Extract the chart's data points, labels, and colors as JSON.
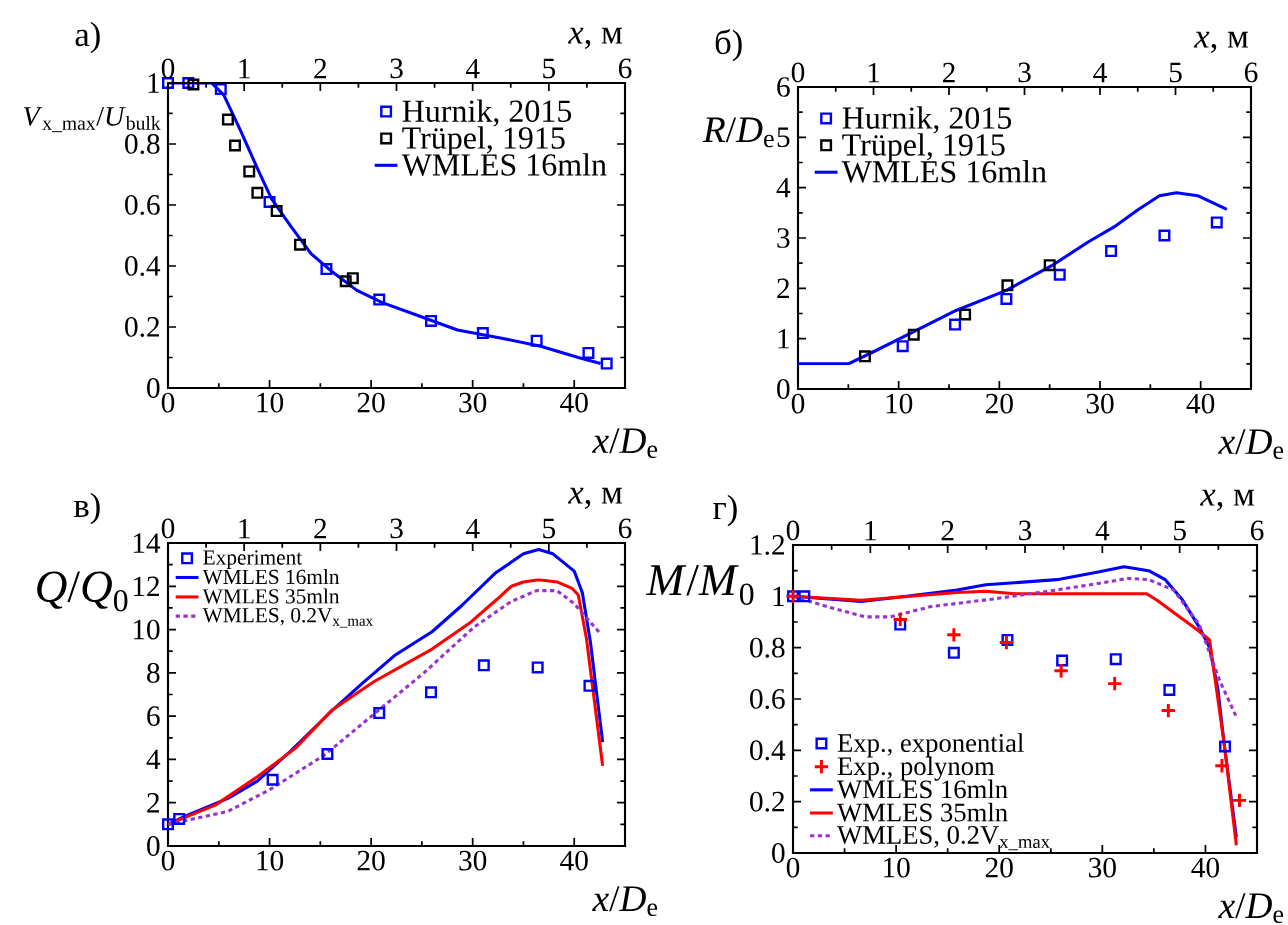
{
  "chart_data": [
    {
      "type": "line",
      "title": "а)",
      "xlabel": "*x*/*D*$_{e}$",
      "x2label": "*x*, м",
      "ylabel": "*V*$_{x_max}$/*U*$_{bulk}$",
      "xlim": [
        0,
        45
      ],
      "xticks": [
        0,
        10,
        20,
        30,
        40
      ],
      "x2lim": [
        0,
        6
      ],
      "x2ticks": [
        0,
        1,
        2,
        3,
        4,
        5,
        6
      ],
      "ylim": [
        0,
        1
      ],
      "yticks": [
        0,
        0.2,
        0.4,
        0.6,
        0.8,
        1
      ],
      "legend": "top right",
      "grid": false,
      "series": [
        {
          "name": "Hurnik, 2015",
          "type": "scatter",
          "marker": "square",
          "color": "#0000ff",
          "x": [
            0,
            2.0,
            5.2,
            10.0,
            15.6,
            20.8,
            25.9,
            31.0,
            36.3,
            41.4,
            43.2
          ],
          "values": [
            1,
            1,
            0.98,
            0.61,
            0.39,
            0.29,
            0.22,
            0.18,
            0.155,
            0.115,
            0.08
          ]
        },
        {
          "name": "Trüpel, 1915",
          "type": "scatter",
          "marker": "square",
          "color": "#000000",
          "x": [
            2.5,
            5.9,
            6.6,
            8.0,
            8.8,
            10.7,
            13.0,
            17.5,
            18.2
          ],
          "values": [
            0.995,
            0.88,
            0.795,
            0.71,
            0.64,
            0.58,
            0.47,
            0.35,
            0.36
          ]
        },
        {
          "name": "WMLES 16mln",
          "type": "line",
          "line_style": "solid",
          "color": "#0000ff",
          "x": [
            0,
            4.3,
            5.5,
            7.2,
            8.8,
            10.2,
            12.1,
            14.1,
            16.2,
            18.6,
            21.1,
            24.4,
            28.5,
            32.6,
            36.7,
            40.4,
            42.6
          ],
          "values": [
            1,
            1,
            0.96,
            0.84,
            0.72,
            0.62,
            0.53,
            0.44,
            0.38,
            0.32,
            0.28,
            0.24,
            0.19,
            0.165,
            0.137,
            0.1,
            0.08
          ]
        }
      ]
    },
    {
      "type": "line",
      "title": "б)",
      "xlabel": "*x*/*D*$_{e}$",
      "x2label": "*x*, м",
      "ylabel": "*R*/*D*$_{e}$",
      "xlim": [
        0,
        45
      ],
      "xticks": [
        0,
        10,
        20,
        30,
        40
      ],
      "x2lim": [
        0,
        6
      ],
      "x2ticks": [
        0,
        1,
        2,
        3,
        4,
        5,
        6
      ],
      "ylim": [
        0,
        6
      ],
      "yticks": [
        0,
        1,
        2,
        3,
        4,
        5,
        6
      ],
      "legend": "top left",
      "grid": false,
      "series": [
        {
          "name": "Hurnik, 2015",
          "type": "scatter",
          "marker": "square",
          "color": "#0000ff",
          "x": [
            10.4,
            15.6,
            20.7,
            26.0,
            31.1,
            36.4,
            41.6
          ],
          "values": [
            0.85,
            1.28,
            1.79,
            2.27,
            2.74,
            3.05,
            3.31
          ]
        },
        {
          "name": "Trüpel, 1915",
          "type": "scatter",
          "marker": "square",
          "color": "#000000",
          "x": [
            6.65,
            11.5,
            16.6,
            20.8,
            25.0
          ],
          "values": [
            0.65,
            1.08,
            1.48,
            2.06,
            2.46
          ]
        },
        {
          "name": "WMLES 16mln",
          "type": "line",
          "line_style": "solid",
          "color": "#0000ff",
          "x": [
            0,
            5.0,
            7.4,
            11.2,
            15.7,
            20.7,
            25.2,
            28.9,
            31.4,
            33.7,
            35.9,
            37.6,
            39.7,
            42.6
          ],
          "values": [
            0.5,
            0.5,
            0.73,
            1.11,
            1.56,
            1.96,
            2.45,
            2.93,
            3.22,
            3.55,
            3.84,
            3.9,
            3.84,
            3.57
          ]
        }
      ]
    },
    {
      "type": "line",
      "title": "в)",
      "xlabel": "*x*/*D*$_{e}$",
      "x2label": "*x*, м",
      "ylabel": "*Q*/*Q*$_{0}$",
      "xlim": [
        0,
        45
      ],
      "xticks": [
        0,
        10,
        20,
        30,
        40
      ],
      "x2lim": [
        0,
        6
      ],
      "x2ticks": [
        0,
        1,
        2,
        3,
        4,
        5,
        6
      ],
      "ylim": [
        0,
        14
      ],
      "yticks": [
        0,
        2,
        4,
        6,
        8,
        10,
        12,
        14
      ],
      "legend": "top left",
      "grid": false,
      "series": [
        {
          "name": "Experiment",
          "type": "scatter",
          "marker": "square",
          "color": "#0000ff",
          "x": [
            0,
            1.1,
            10.3,
            15.7,
            20.8,
            25.9,
            31.1,
            36.4,
            41.5
          ],
          "values": [
            1.0,
            1.25,
            3.06,
            4.25,
            6.14,
            7.1,
            8.35,
            8.25,
            7.4
          ]
        },
        {
          "name": "WMLES 16mln",
          "type": "line",
          "line_style": "solid",
          "color": "#0000ff",
          "x": [
            0,
            1.8,
            5.9,
            8.8,
            12.1,
            15.8,
            19.1,
            22.3,
            26.0,
            28.9,
            32.2,
            35.0,
            36.5,
            37.9,
            40.0,
            40.8,
            41.6,
            42.8
          ],
          "values": [
            1.0,
            1.4,
            2.2,
            3.0,
            4.4,
            6.1,
            7.5,
            8.8,
            9.9,
            11.1,
            12.6,
            13.5,
            13.7,
            13.5,
            12.7,
            11.7,
            9.4,
            4.8
          ]
        },
        {
          "name": "WMLES 35mln",
          "type": "line",
          "line_style": "solid",
          "color": "#ff0000",
          "x": [
            0,
            4.7,
            8.8,
            12.5,
            16.2,
            20.3,
            26.0,
            29.7,
            32.4,
            33.8,
            35.0,
            36.5,
            38.3,
            39.8,
            40.4,
            41.2,
            42.8
          ],
          "values": [
            1.0,
            1.9,
            3.2,
            4.5,
            6.3,
            7.6,
            9.1,
            10.3,
            11.4,
            12.0,
            12.2,
            12.3,
            12.2,
            11.9,
            11.6,
            9.6,
            3.7
          ]
        },
        {
          "name": "WMLES, 0.2V$_{x_max}$",
          "type": "line",
          "line_style": "dotted",
          "color": "#9933cc",
          "x": [
            0,
            5.9,
            10.0,
            15.4,
            20.3,
            25.2,
            30.1,
            33.8,
            36.3,
            38.3,
            40.0,
            42.6
          ],
          "values": [
            1.0,
            1.6,
            2.6,
            4.2,
            6.1,
            8.0,
            10.1,
            11.3,
            11.8,
            11.8,
            11.2,
            9.8
          ]
        }
      ]
    },
    {
      "type": "line",
      "title": "г)",
      "xlabel": "*x*/*D*$_{e}$",
      "x2label": "*x*, м",
      "ylabel": "*M*/*M*$_{0}$",
      "xlim": [
        0,
        45
      ],
      "xticks": [
        0,
        10,
        20,
        30,
        40
      ],
      "x2lim": [
        0,
        6
      ],
      "x2ticks": [
        0,
        1,
        2,
        3,
        4,
        5,
        6
      ],
      "ylim": [
        0,
        1.2
      ],
      "yticks": [
        0,
        0.2,
        0.4,
        0.6,
        0.8,
        1,
        1.2
      ],
      "legend": "bottom left",
      "grid": false,
      "series": [
        {
          "name": "Exp., exponential",
          "type": "scatter",
          "marker": "square",
          "color": "#0000ff",
          "x": [
            0,
            1.1,
            10.4,
            15.6,
            20.8,
            26.1,
            31.3,
            36.5,
            41.9
          ],
          "values": [
            1.0,
            1.0,
            0.89,
            0.78,
            0.83,
            0.75,
            0.755,
            0.635,
            0.415
          ]
        },
        {
          "name": "Exp., polynom",
          "type": "scatter",
          "marker": "cross",
          "color": "#ff0000",
          "x": [
            0,
            10.4,
            15.6,
            20.7,
            26.0,
            31.2,
            36.4,
            41.6,
            43.3
          ],
          "values": [
            1.0,
            0.91,
            0.85,
            0.82,
            0.71,
            0.66,
            0.555,
            0.34,
            0.205
          ]
        },
        {
          "name": "WMLES 16mln",
          "type": "line",
          "line_style": "solid",
          "color": "#0000ff",
          "x": [
            0,
            6.6,
            11.0,
            15.9,
            18.7,
            25.6,
            29.6,
            32.1,
            34.5,
            36.1,
            37.7,
            39.4,
            40.4,
            41.2,
            41.8,
            43.0
          ],
          "values": [
            1.0,
            0.98,
            1.0,
            1.025,
            1.045,
            1.065,
            1.095,
            1.115,
            1.1,
            1.065,
            0.99,
            0.88,
            0.8,
            0.64,
            0.43,
            0.062
          ]
        },
        {
          "name": "WMLES 35mln",
          "type": "line",
          "line_style": "solid",
          "color": "#ff0000",
          "x": [
            0,
            6.6,
            15.9,
            18.7,
            21.5,
            29.6,
            34.3,
            35.3,
            39.2,
            40.4,
            41.8,
            43.0
          ],
          "values": [
            1.0,
            0.985,
            1.015,
            1.02,
            1.01,
            1.01,
            1.01,
            0.985,
            0.87,
            0.83,
            0.43,
            0.03
          ]
        },
        {
          "name": "WMLES, 0.2V$_{x_max}$",
          "type": "line",
          "line_style": "dotted",
          "color": "#9933cc",
          "x": [
            0,
            3.3,
            7.0,
            9.4,
            13.4,
            19.5,
            25.6,
            29.6,
            32.5,
            34.5,
            36.9,
            39.4,
            41.4,
            43.0
          ],
          "values": [
            1.0,
            0.96,
            0.92,
            0.92,
            0.96,
            0.99,
            1.025,
            1.05,
            1.07,
            1.065,
            1.025,
            0.89,
            0.67,
            0.53
          ]
        }
      ]
    }
  ]
}
